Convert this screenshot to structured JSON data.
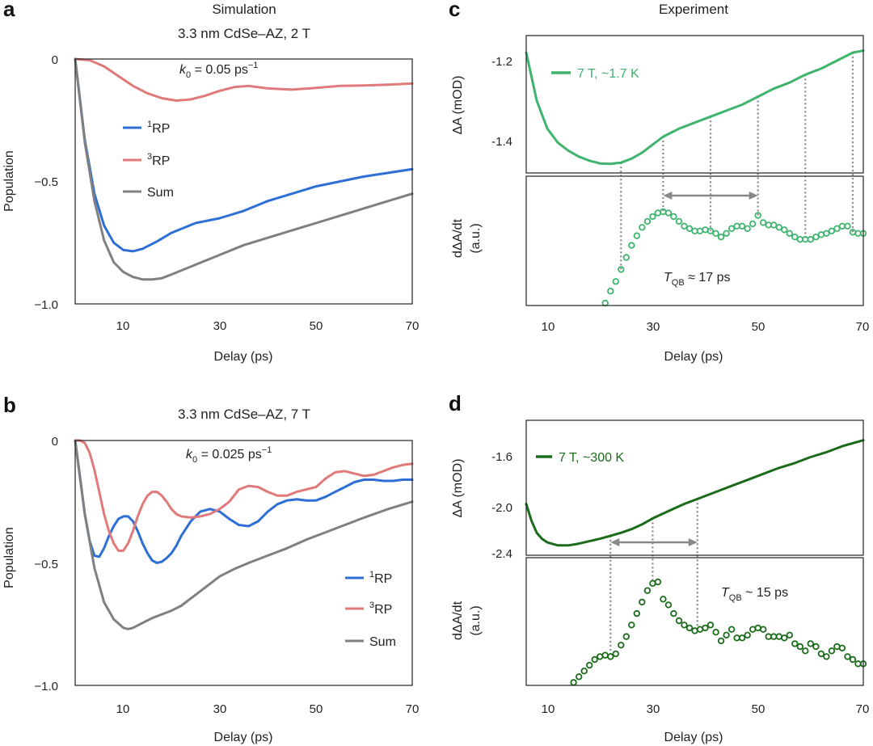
{
  "panels": {
    "a": {
      "letter": "a",
      "title": "Simulation",
      "subtitle": "3.3 nm CdSe–AZ, 2 T",
      "annotation": {
        "k": "k",
        "sub": "0",
        "text": " = 0.05 ps",
        "sup": "−1"
      },
      "ylabel": "Population",
      "xlabel": "Delay (ps)",
      "yticks": [
        "0",
        "−0.5",
        "−1.0"
      ],
      "xticks": [
        "10",
        "30",
        "50",
        "70"
      ],
      "legend": [
        {
          "sup": "1",
          "label": "RP"
        },
        {
          "sup": "3",
          "label": "RP"
        },
        {
          "sup": "",
          "label": "Sum"
        }
      ]
    },
    "b": {
      "letter": "b",
      "title": "3.3 nm CdSe–AZ, 7 T",
      "annotation": {
        "k": "k",
        "sub": "0",
        "text": " = 0.025 ps",
        "sup": "−1"
      },
      "ylabel": "Population",
      "xlabel": "Delay (ps)",
      "yticks": [
        "0",
        "−0.5",
        "−1.0"
      ],
      "xticks": [
        "10",
        "30",
        "50",
        "70"
      ],
      "legend": [
        {
          "sup": "1",
          "label": "RP"
        },
        {
          "sup": "3",
          "label": "RP"
        },
        {
          "sup": "",
          "label": "Sum"
        }
      ]
    },
    "c": {
      "letter": "c",
      "title": "Experiment",
      "legend": "7 T, ~1.7 K",
      "ylabel_top": "ΔA (mOD)",
      "ylabel_bottom_1": "dΔA/dt",
      "ylabel_bottom_2": "(a.u.)",
      "yticks_top": [
        "-1.2",
        "-1.4"
      ],
      "xticks": [
        "10",
        "30",
        "50",
        "70"
      ],
      "xlabel": "Delay (ps)",
      "tqb": {
        "T": "T",
        "sub": "QB",
        "text": " ≈ 17 ps"
      }
    },
    "d": {
      "letter": "d",
      "legend": "7 T, ~300 K",
      "ylabel_top": "ΔA (mOD)",
      "ylabel_bottom_1": "dΔA/dt",
      "ylabel_bottom_2": "(a.u.)",
      "yticks_top": [
        "-1.6",
        "-2.0",
        "-2.4"
      ],
      "xticks": [
        "10",
        "30",
        "50",
        "70"
      ],
      "xlabel": "Delay (ps)",
      "tqb": {
        "T": "T",
        "sub": "QB",
        "text": " ~ 15 ps"
      }
    }
  },
  "colors": {
    "singlet": "#2e6fd6",
    "triplet": "#e07a7a",
    "sum": "#808080",
    "light_green": "#3fb46e",
    "dark_green": "#1a6b1a",
    "dotted": "#888888"
  },
  "chart_data": [
    {
      "panel": "a",
      "type": "line",
      "xlabel": "Delay (ps)",
      "ylabel": "Population",
      "xlim": [
        0,
        70
      ],
      "ylim": [
        -1.0,
        0.03
      ],
      "series": [
        {
          "name": "1RP",
          "color": "#2e6fd6",
          "x": [
            0,
            2,
            4,
            6,
            8,
            10,
            12,
            14,
            17,
            20,
            25,
            30,
            35,
            40,
            45,
            50,
            55,
            60,
            65,
            70
          ],
          "y": [
            0,
            -0.33,
            -0.55,
            -0.68,
            -0.75,
            -0.78,
            -0.785,
            -0.775,
            -0.745,
            -0.71,
            -0.67,
            -0.65,
            -0.62,
            -0.58,
            -0.55,
            -0.52,
            -0.5,
            -0.48,
            -0.465,
            -0.45
          ]
        },
        {
          "name": "3RP",
          "color": "#e07a7a",
          "x": [
            0,
            3,
            6,
            9,
            12,
            15,
            18,
            21,
            24,
            27,
            30,
            33,
            36,
            40,
            45,
            50,
            55,
            60,
            65,
            70
          ],
          "y": [
            0,
            -0.005,
            -0.03,
            -0.07,
            -0.11,
            -0.14,
            -0.16,
            -0.17,
            -0.165,
            -0.15,
            -0.13,
            -0.115,
            -0.11,
            -0.12,
            -0.125,
            -0.118,
            -0.11,
            -0.108,
            -0.105,
            -0.1
          ]
        },
        {
          "name": "Sum",
          "color": "#808080",
          "x": [
            0,
            2,
            4,
            6,
            8,
            10,
            12,
            14,
            16,
            18,
            20,
            25,
            30,
            35,
            40,
            45,
            50,
            55,
            60,
            65,
            70
          ],
          "y": [
            0,
            -0.34,
            -0.58,
            -0.74,
            -0.83,
            -0.87,
            -0.89,
            -0.9,
            -0.9,
            -0.895,
            -0.88,
            -0.84,
            -0.8,
            -0.76,
            -0.73,
            -0.7,
            -0.67,
            -0.64,
            -0.61,
            -0.58,
            -0.55
          ]
        }
      ]
    },
    {
      "panel": "b",
      "type": "line",
      "xlabel": "Delay (ps)",
      "ylabel": "Population",
      "xlim": [
        0,
        70
      ],
      "ylim": [
        -1.0,
        0.03
      ],
      "series": [
        {
          "name": "1RP",
          "color": "#2e6fd6",
          "x": [
            0,
            1,
            2,
            3,
            4,
            5,
            6,
            7,
            8,
            9,
            10,
            11,
            12,
            13,
            14,
            15,
            16,
            17,
            18,
            19,
            20,
            21,
            22,
            24,
            26,
            28,
            30,
            32,
            34,
            36,
            38,
            40,
            42,
            44,
            46,
            48,
            50,
            52,
            54,
            56,
            58,
            60,
            62,
            64,
            66,
            68,
            70
          ],
          "y": [
            0,
            -0.15,
            -0.3,
            -0.41,
            -0.47,
            -0.475,
            -0.44,
            -0.39,
            -0.35,
            -0.32,
            -0.31,
            -0.31,
            -0.33,
            -0.37,
            -0.42,
            -0.46,
            -0.49,
            -0.5,
            -0.495,
            -0.48,
            -0.46,
            -0.43,
            -0.39,
            -0.33,
            -0.29,
            -0.28,
            -0.29,
            -0.32,
            -0.345,
            -0.35,
            -0.33,
            -0.29,
            -0.26,
            -0.245,
            -0.24,
            -0.245,
            -0.245,
            -0.23,
            -0.21,
            -0.19,
            -0.17,
            -0.16,
            -0.16,
            -0.165,
            -0.165,
            -0.16,
            -0.16
          ]
        },
        {
          "name": "3RP",
          "color": "#e07a7a",
          "x": [
            0,
            1,
            2,
            3,
            4,
            5,
            6,
            7,
            8,
            9,
            10,
            11,
            12,
            13,
            14,
            15,
            16,
            17,
            18,
            19,
            20,
            21,
            22,
            24,
            26,
            28,
            30,
            32,
            34,
            36,
            38,
            40,
            42,
            44,
            46,
            48,
            50,
            52,
            54,
            56,
            58,
            60,
            62,
            64,
            66,
            68,
            70
          ],
          "y": [
            0,
            0,
            -0.01,
            -0.05,
            -0.12,
            -0.21,
            -0.3,
            -0.37,
            -0.42,
            -0.45,
            -0.45,
            -0.42,
            -0.37,
            -0.31,
            -0.26,
            -0.225,
            -0.21,
            -0.21,
            -0.225,
            -0.25,
            -0.28,
            -0.3,
            -0.31,
            -0.315,
            -0.31,
            -0.3,
            -0.28,
            -0.25,
            -0.2,
            -0.185,
            -0.19,
            -0.21,
            -0.225,
            -0.225,
            -0.21,
            -0.2,
            -0.19,
            -0.155,
            -0.13,
            -0.125,
            -0.135,
            -0.145,
            -0.14,
            -0.125,
            -0.11,
            -0.1,
            -0.095
          ]
        },
        {
          "name": "Sum",
          "color": "#808080",
          "x": [
            0,
            2,
            4,
            6,
            8,
            10,
            11,
            12,
            14,
            16,
            18,
            20,
            22,
            25,
            28,
            30,
            33,
            36,
            40,
            44,
            48,
            52,
            56,
            60,
            65,
            70
          ],
          "y": [
            0,
            -0.3,
            -0.52,
            -0.66,
            -0.73,
            -0.765,
            -0.77,
            -0.765,
            -0.745,
            -0.725,
            -0.71,
            -0.695,
            -0.675,
            -0.63,
            -0.585,
            -0.555,
            -0.525,
            -0.5,
            -0.47,
            -0.44,
            -0.405,
            -0.375,
            -0.345,
            -0.315,
            -0.28,
            -0.25
          ]
        }
      ]
    },
    {
      "panel": "c",
      "type": "line+scatter",
      "xlabel": "Delay (ps)",
      "xlim": [
        6,
        70
      ],
      "top": {
        "ylabel": "ΔA (mOD)",
        "ylim": [
          -1.47,
          -1.165
        ],
        "series": [
          {
            "name": "7 T, ~1.7 K",
            "color": "#3fb46e",
            "x": [
              6,
              8,
              10,
              12,
              14,
              16,
              18,
              20,
              22,
              24,
              26,
              28,
              30,
              32,
              35,
              38,
              41,
              44,
              47,
              50,
              53,
              56,
              59,
              62,
              65,
              68,
              70
            ],
            "y": [
              -1.18,
              -1.3,
              -1.37,
              -1.405,
              -1.425,
              -1.44,
              -1.45,
              -1.457,
              -1.458,
              -1.455,
              -1.445,
              -1.43,
              -1.41,
              -1.39,
              -1.37,
              -1.355,
              -1.34,
              -1.325,
              -1.31,
              -1.29,
              -1.27,
              -1.255,
              -1.235,
              -1.22,
              -1.2,
              -1.18,
              -1.175
            ]
          }
        ]
      },
      "bottom": {
        "ylabel": "dΔA/dt (a.u.)",
        "series": [
          {
            "name": "derivative",
            "color": "#3fb46e",
            "x": [
              21,
              22,
              23,
              24,
              25,
              26,
              27,
              28,
              29,
              30,
              31,
              32,
              33,
              34,
              35,
              36,
              37,
              38,
              39,
              40,
              41,
              42,
              43,
              44,
              45,
              46,
              47,
              48,
              49,
              50,
              51,
              52,
              53,
              54,
              55,
              56,
              57,
              58,
              59,
              60,
              61,
              62,
              63,
              64,
              65,
              66,
              67,
              68,
              69,
              70
            ],
            "y": [
              0.02,
              0.12,
              0.2,
              0.3,
              0.4,
              0.5,
              0.58,
              0.65,
              0.7,
              0.74,
              0.77,
              0.78,
              0.77,
              0.74,
              0.7,
              0.66,
              0.64,
              0.62,
              0.62,
              0.63,
              0.62,
              0.6,
              0.57,
              0.6,
              0.64,
              0.66,
              0.66,
              0.64,
              0.68,
              0.75,
              0.69,
              0.67,
              0.67,
              0.65,
              0.63,
              0.6,
              0.57,
              0.55,
              0.55,
              0.55,
              0.57,
              0.59,
              0.6,
              0.62,
              0.64,
              0.66,
              0.66,
              0.61,
              0.6,
              0.6
            ]
          }
        ]
      },
      "markers_x": [
        24,
        32,
        41,
        50,
        59,
        68
      ],
      "period_arrow": [
        32,
        50
      ],
      "tqb_ps": 17
    },
    {
      "panel": "d",
      "type": "line+scatter",
      "xlabel": "Delay (ps)",
      "xlim": [
        6,
        70
      ],
      "top": {
        "ylabel": "ΔA (mOD)",
        "ylim": [
          -2.41,
          -1.43
        ],
        "series": [
          {
            "name": "7 T, ~300 K",
            "color": "#1a6b1a",
            "x": [
              6,
              7,
              8,
              9,
              10,
              12,
              14,
              16,
              18,
              20,
              22,
              24,
              26,
              28,
              30,
              33,
              36,
              39,
              42,
              45,
              48,
              51,
              54,
              57,
              60,
              63,
              66,
              70
            ],
            "y": [
              -2.0,
              -2.14,
              -2.24,
              -2.29,
              -2.32,
              -2.345,
              -2.345,
              -2.33,
              -2.31,
              -2.29,
              -2.265,
              -2.24,
              -2.21,
              -2.17,
              -2.12,
              -2.06,
              -2.0,
              -1.95,
              -1.9,
              -1.85,
              -1.8,
              -1.75,
              -1.7,
              -1.66,
              -1.61,
              -1.57,
              -1.52,
              -1.47
            ]
          }
        ]
      },
      "bottom": {
        "ylabel": "dΔA/dt (a.u.)",
        "series": [
          {
            "name": "derivative",
            "color": "#1a6b1a",
            "x": [
              15,
              16,
              17,
              18,
              19,
              20,
              21,
              22,
              23,
              24,
              25,
              26,
              27,
              28,
              29,
              30,
              31,
              32,
              33,
              34,
              35,
              36,
              37,
              38,
              39,
              40,
              41,
              42,
              43,
              44,
              45,
              46,
              47,
              48,
              49,
              50,
              51,
              52,
              53,
              54,
              55,
              56,
              57,
              58,
              59,
              60,
              61,
              62,
              63,
              64,
              65,
              66,
              67,
              68,
              69,
              70
            ],
            "y": [
              0.02,
              0.06,
              0.1,
              0.14,
              0.18,
              0.2,
              0.21,
              0.2,
              0.22,
              0.28,
              0.34,
              0.42,
              0.5,
              0.58,
              0.66,
              0.71,
              0.72,
              0.6,
              0.56,
              0.5,
              0.45,
              0.42,
              0.4,
              0.38,
              0.39,
              0.4,
              0.42,
              0.37,
              0.31,
              0.35,
              0.39,
              0.33,
              0.33,
              0.35,
              0.39,
              0.4,
              0.39,
              0.34,
              0.34,
              0.34,
              0.33,
              0.35,
              0.29,
              0.27,
              0.24,
              0.29,
              0.27,
              0.22,
              0.2,
              0.24,
              0.27,
              0.26,
              0.2,
              0.18,
              0.15,
              0.15
            ]
          }
        ]
      },
      "markers_x": [
        22,
        30,
        38.5
      ],
      "period_arrow": [
        22,
        38.5
      ],
      "tqb_ps": 15
    }
  ]
}
